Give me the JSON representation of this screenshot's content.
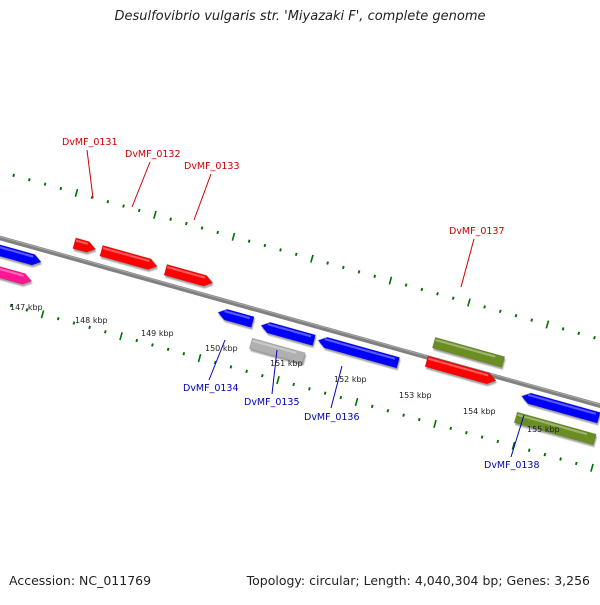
{
  "header": {
    "title": "Desulfovibrio vulgaris str. 'Miyazaki F', complete genome"
  },
  "footer": {
    "accession": "Accession: NC_011769",
    "summary": "Topology: circular; Length: 4,040,304 bp; Genes: 3,256"
  },
  "scale": {
    "unit": "kbp",
    "ticks": [
      147,
      148,
      149,
      150,
      151,
      152,
      153,
      154,
      155
    ]
  },
  "colors": {
    "forward_strand": "#ff0000",
    "reverse_strand": "#0000ff",
    "rna_feature": "#6b8e23",
    "pseudo_feature": "#b0b0b0",
    "partial_feature": "#ff1493",
    "forward_label": "#cc0000",
    "reverse_label": "#0000bb",
    "tick": "#007000",
    "backbone": "#808080"
  },
  "gene_labels": [
    {
      "name": "DvMF_0131",
      "strand": "forward"
    },
    {
      "name": "DvMF_0132",
      "strand": "forward"
    },
    {
      "name": "DvMF_0133",
      "strand": "forward"
    },
    {
      "name": "DvMF_0137",
      "strand": "forward"
    },
    {
      "name": "DvMF_0134",
      "strand": "reverse"
    },
    {
      "name": "DvMF_0135",
      "strand": "reverse"
    },
    {
      "name": "DvMF_0136",
      "strand": "reverse"
    },
    {
      "name": "DvMF_0138",
      "strand": "reverse"
    }
  ]
}
